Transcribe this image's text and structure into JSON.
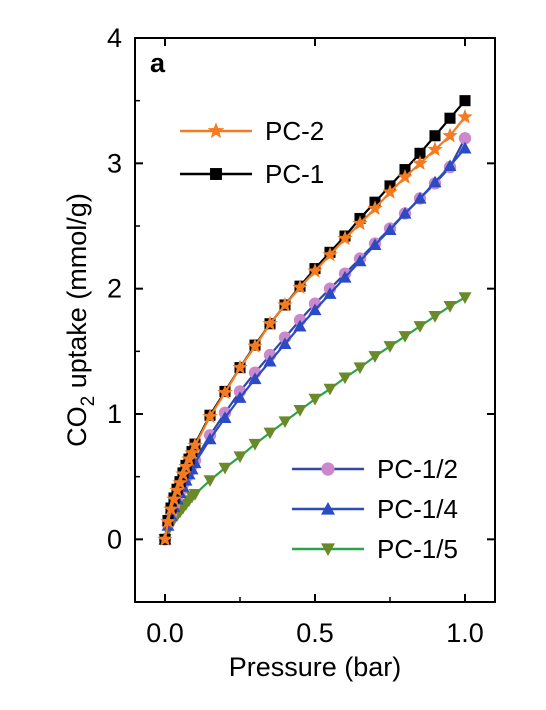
{
  "chart_data": {
    "type": "line",
    "panel_label": "a",
    "xlabel": "Pressure (bar)",
    "ylabel": {
      "prefix": "CO",
      "subscript": "2",
      "suffix": " uptake (mmol/g)"
    },
    "xlim": [
      -0.1,
      1.1
    ],
    "ylim": [
      -0.5,
      4
    ],
    "xticks": [
      0.0,
      0.5,
      1.0
    ],
    "xtick_labels": [
      "0.0",
      "0.5",
      "1.0"
    ],
    "yticks": [
      0,
      1,
      2,
      3,
      4
    ],
    "ytick_labels": [
      "0",
      "1",
      "2",
      "3",
      "4"
    ],
    "grid": false,
    "legends": [
      {
        "placement": "top-left",
        "entries": [
          "PC-2",
          "PC-1"
        ]
      },
      {
        "placement": "bottom-right",
        "entries": [
          "PC-1/2",
          "PC-1/4",
          "PC-1/5"
        ]
      }
    ],
    "x": [
      0.0,
      0.01,
      0.02,
      0.03,
      0.04,
      0.05,
      0.06,
      0.07,
      0.08,
      0.09,
      0.1,
      0.15,
      0.2,
      0.25,
      0.3,
      0.35,
      0.4,
      0.45,
      0.5,
      0.55,
      0.6,
      0.65,
      0.7,
      0.75,
      0.8,
      0.85,
      0.9,
      0.95,
      1.0
    ],
    "series": [
      {
        "name": "PC-2",
        "color": "#f47b20",
        "marker": "star",
        "values": [
          0.0,
          0.14,
          0.24,
          0.32,
          0.39,
          0.45,
          0.52,
          0.58,
          0.64,
          0.69,
          0.75,
          0.98,
          1.17,
          1.37,
          1.54,
          1.72,
          1.87,
          2.01,
          2.14,
          2.27,
          2.4,
          2.52,
          2.64,
          2.77,
          2.89,
          3.0,
          3.11,
          3.22,
          3.37
        ]
      },
      {
        "name": "PC-1",
        "color": "#000000",
        "marker": "square",
        "values": [
          0.0,
          0.15,
          0.25,
          0.33,
          0.4,
          0.46,
          0.53,
          0.59,
          0.64,
          0.7,
          0.76,
          0.99,
          1.18,
          1.37,
          1.55,
          1.72,
          1.87,
          2.02,
          2.16,
          2.29,
          2.42,
          2.56,
          2.69,
          2.82,
          2.95,
          3.08,
          3.22,
          3.36,
          3.5
        ]
      },
      {
        "name": "PC-1/2",
        "color": "#cc88cc",
        "line_color": "#3344aa",
        "marker": "circle",
        "values": [
          0.0,
          0.12,
          0.2,
          0.27,
          0.33,
          0.38,
          0.44,
          0.49,
          0.54,
          0.59,
          0.63,
          0.83,
          1.01,
          1.18,
          1.33,
          1.47,
          1.61,
          1.75,
          1.88,
          2.0,
          2.12,
          2.24,
          2.36,
          2.48,
          2.6,
          2.72,
          2.84,
          2.97,
          3.2
        ]
      },
      {
        "name": "PC-1/4",
        "color": "#2b4bc4",
        "marker": "triangle-up",
        "values": [
          0.0,
          0.11,
          0.19,
          0.26,
          0.32,
          0.37,
          0.42,
          0.47,
          0.52,
          0.56,
          0.61,
          0.8,
          0.97,
          1.13,
          1.28,
          1.42,
          1.56,
          1.7,
          1.83,
          1.96,
          2.09,
          2.22,
          2.35,
          2.47,
          2.6,
          2.72,
          2.85,
          2.98,
          3.12
        ]
      },
      {
        "name": "PC-1/5",
        "color": "#6a8a2a",
        "line_color": "#2aa44a",
        "marker": "triangle-down",
        "values": [
          0.0,
          0.07,
          0.12,
          0.16,
          0.19,
          0.22,
          0.25,
          0.28,
          0.31,
          0.34,
          0.36,
          0.47,
          0.57,
          0.66,
          0.76,
          0.85,
          0.94,
          1.03,
          1.12,
          1.2,
          1.29,
          1.37,
          1.46,
          1.54,
          1.62,
          1.7,
          1.78,
          1.86,
          1.93
        ]
      }
    ]
  }
}
